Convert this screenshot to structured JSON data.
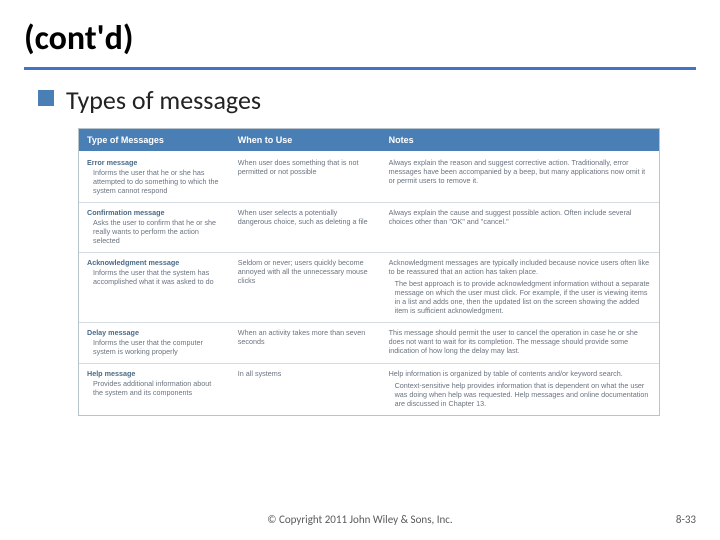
{
  "colors": {
    "accent": "#4472c4",
    "bullet": "#4a7fb5",
    "header_bg": "#4a7fb5",
    "header_text": "#ffffff",
    "body_text": "#6a7480",
    "msg_name": "#4a6a88",
    "border": "#d6dde2",
    "outer_border": "#b8c4cc"
  },
  "fonts": {
    "title_size": 34,
    "bullet_size": 26,
    "th_size": 9,
    "td_size": 7.2,
    "footer_size": 11
  },
  "title": "(cont'd)",
  "bullet": "Types of messages",
  "table": {
    "headers": [
      "Type of Messages",
      "When to Use",
      "Notes"
    ],
    "col_widths_pct": [
      26,
      26,
      48
    ],
    "rows": [
      {
        "name": "Error message",
        "desc": "Informs the user that he or she has attempted to do something to which the system cannot respond",
        "when": "When user does something that is not permitted or not possible",
        "notes": "Always explain the reason and suggest corrective action. Traditionally, error messages have been accompanied by a beep, but many applications now omit it or permit users to remove it."
      },
      {
        "name": "Confirmation message",
        "desc": "Asks the user to confirm that he or she really wants to perform the action selected",
        "when": "When user selects a potentially dangerous choice, such as deleting a file",
        "notes": "Always explain the cause and suggest possible action. Often include several choices other than \"OK\" and \"cancel.\""
      },
      {
        "name": "Acknowledgment message",
        "desc": "Informs the user that the system has accomplished what it was asked to do",
        "when": "Seldom or never; users quickly become annoyed with all the unnecessary mouse clicks",
        "notes": "Acknowledgment messages are typically included because novice users often like to be reassured that an action has taken place.",
        "notes2": "The best approach is to provide acknowledgment information without a separate message on which the user must click. For example, if the user is viewing items in a list and adds one, then the updated list on the screen showing the added item is sufficient acknowledgment."
      },
      {
        "name": "Delay message",
        "desc": "Informs the user that the computer system is working properly",
        "when": "When an activity takes more than seven seconds",
        "notes": "This message should permit the user to cancel the operation in case he or she does not want to wait for its completion. The message should provide some indication of how long the delay may last."
      },
      {
        "name": "Help message",
        "desc": "Provides additional information about the system and its components",
        "when": "In all systems",
        "notes": "Help information is organized by table of contents and/or keyword search.",
        "notes2": "Context-sensitive help provides information that is dependent on what the user was doing when help was requested. Help messages and online documentation are discussed in Chapter 13."
      }
    ]
  },
  "footer": {
    "copyright": "© Copyright 2011 John Wiley & Sons, Inc.",
    "page": "8-33"
  }
}
